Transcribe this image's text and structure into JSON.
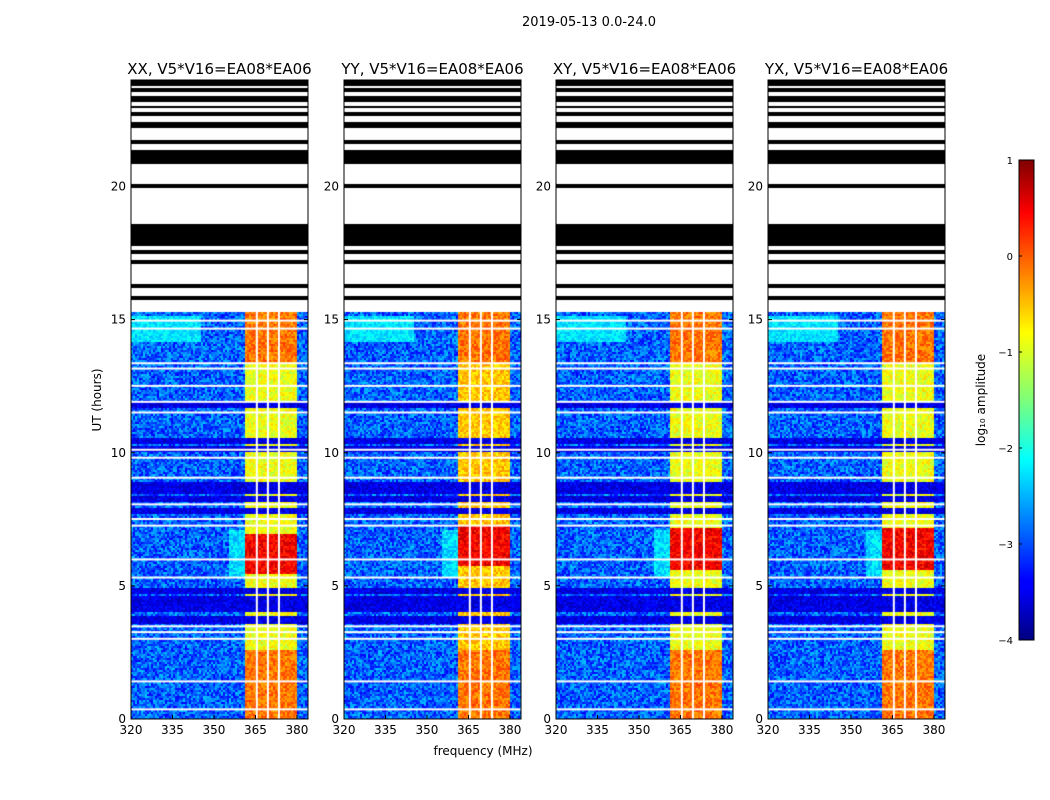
{
  "figure": {
    "suptitle": "2019-05-13 0.0-24.0",
    "xlabel": "frequency (MHz)",
    "ylabel": "UT (hours)"
  },
  "chart_data": {
    "type": "heatmap",
    "x_ticks": [
      "320",
      "335",
      "350",
      "365",
      "380"
    ],
    "x_tick_values": [
      320,
      335,
      350,
      365,
      380
    ],
    "y_ticks": [
      "0",
      "5",
      "10",
      "15",
      "20"
    ],
    "y_tick_values": [
      0,
      5,
      10,
      15,
      20
    ],
    "xlim": [
      320,
      384
    ],
    "ylim": [
      0,
      24
    ],
    "panels": [
      {
        "title": "XX, V5*V16=EA08*EA06",
        "peak_hours": [
          5.5,
          7.0
        ],
        "mid_level": 0.55
      },
      {
        "title": "YY, V5*V16=EA08*EA06",
        "peak_hours": [
          5.8,
          7.3
        ],
        "mid_level": 0.62
      },
      {
        "title": "XY, V5*V16=EA08*EA06",
        "peak_hours": [
          5.6,
          7.2
        ],
        "mid_level": 0.55
      },
      {
        "title": "YX, V5*V16=EA08*EA06",
        "peak_hours": [
          5.6,
          7.2
        ],
        "mid_level": 0.55
      }
    ],
    "rfi_band_mhz": [
      361,
      380
    ],
    "channel_gaps_mhz": [
      365.5,
      369.5,
      373.5
    ],
    "blank_intervals_hours": [
      [
        15.3,
        15.75
      ],
      [
        15.9,
        16.2
      ],
      [
        16.35,
        17.1
      ],
      [
        17.3,
        17.5
      ],
      [
        17.65,
        17.8
      ],
      [
        18.6,
        19.95
      ],
      [
        20.15,
        20.9
      ],
      [
        21.4,
        21.65
      ],
      [
        21.8,
        22.25
      ],
      [
        22.45,
        22.65
      ],
      [
        22.8,
        22.95
      ],
      [
        23.05,
        23.2
      ],
      [
        23.4,
        23.55
      ],
      [
        23.7,
        23.8
      ]
    ],
    "gap_lines_hours": [
      0.4,
      1.45,
      3.05,
      3.3,
      3.52,
      5.35,
      6.03,
      7.3,
      7.55,
      8.1,
      9.1,
      9.85,
      10.15,
      11.55,
      11.95,
      12.55,
      13.2,
      13.4,
      14.7,
      15.0
    ],
    "dark_rows_hours": [
      3.75,
      4.2,
      4.5,
      4.85,
      7.85,
      8.3,
      8.6,
      8.85,
      10.2,
      10.5,
      11.85
    ],
    "colorbar": {
      "label": "log₁₀ amplitude",
      "range": [
        -4,
        1
      ],
      "ticks": [
        "1",
        "0",
        "−1",
        "−2",
        "−3",
        "−4"
      ],
      "tick_values": [
        1,
        0,
        -1,
        -2,
        -3,
        -4
      ],
      "colormap": "jet"
    }
  }
}
